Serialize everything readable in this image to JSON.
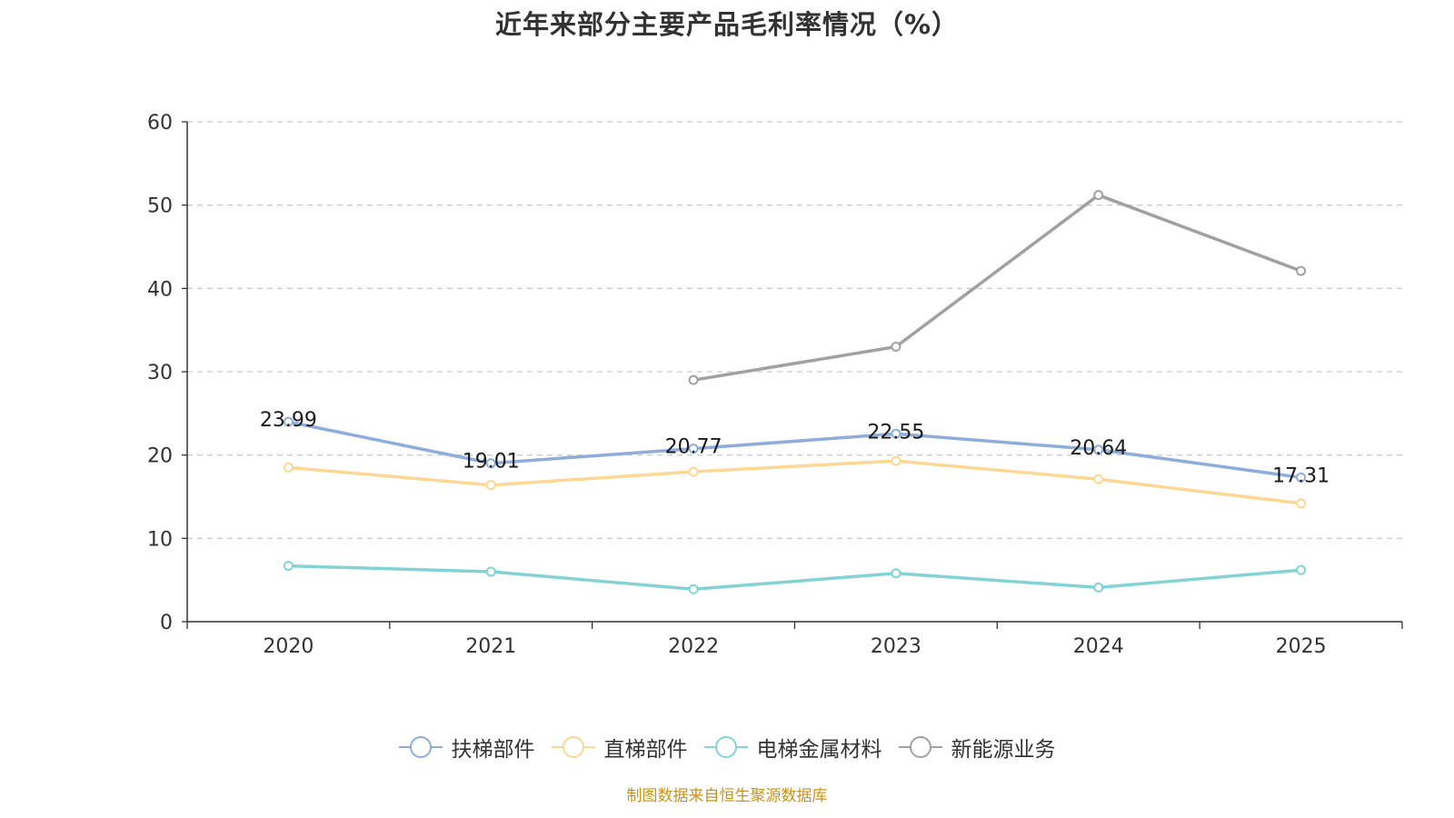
{
  "chart_data": {
    "type": "line",
    "title": "近年来部分主要产品毛利率情况（%）",
    "categories": [
      "2020",
      "2021",
      "2022",
      "2023",
      "2024",
      "2025"
    ],
    "ylim": [
      0,
      60
    ],
    "yticks": [
      0,
      10,
      20,
      30,
      40,
      50,
      60
    ],
    "grid": true,
    "legend_position": "bottom",
    "series": [
      {
        "name": "扶梯部件",
        "color": "#8eaddb",
        "values": [
          23.99,
          19.01,
          20.77,
          22.55,
          20.64,
          17.31
        ],
        "show_labels": true
      },
      {
        "name": "直梯部件",
        "color": "#fcd894",
        "values": [
          18.5,
          16.4,
          18.0,
          19.3,
          17.1,
          14.2
        ],
        "show_labels": false
      },
      {
        "name": "电梯金属材料",
        "color": "#84d3d4",
        "values": [
          6.7,
          6.0,
          3.9,
          5.8,
          4.1,
          6.2
        ],
        "show_labels": false
      },
      {
        "name": "新能源业务",
        "color": "#a1a1a1",
        "values": [
          null,
          null,
          29.0,
          33.0,
          51.2,
          42.1
        ],
        "show_labels": false
      }
    ],
    "source": "制图数据来自恒生聚源数据库"
  }
}
